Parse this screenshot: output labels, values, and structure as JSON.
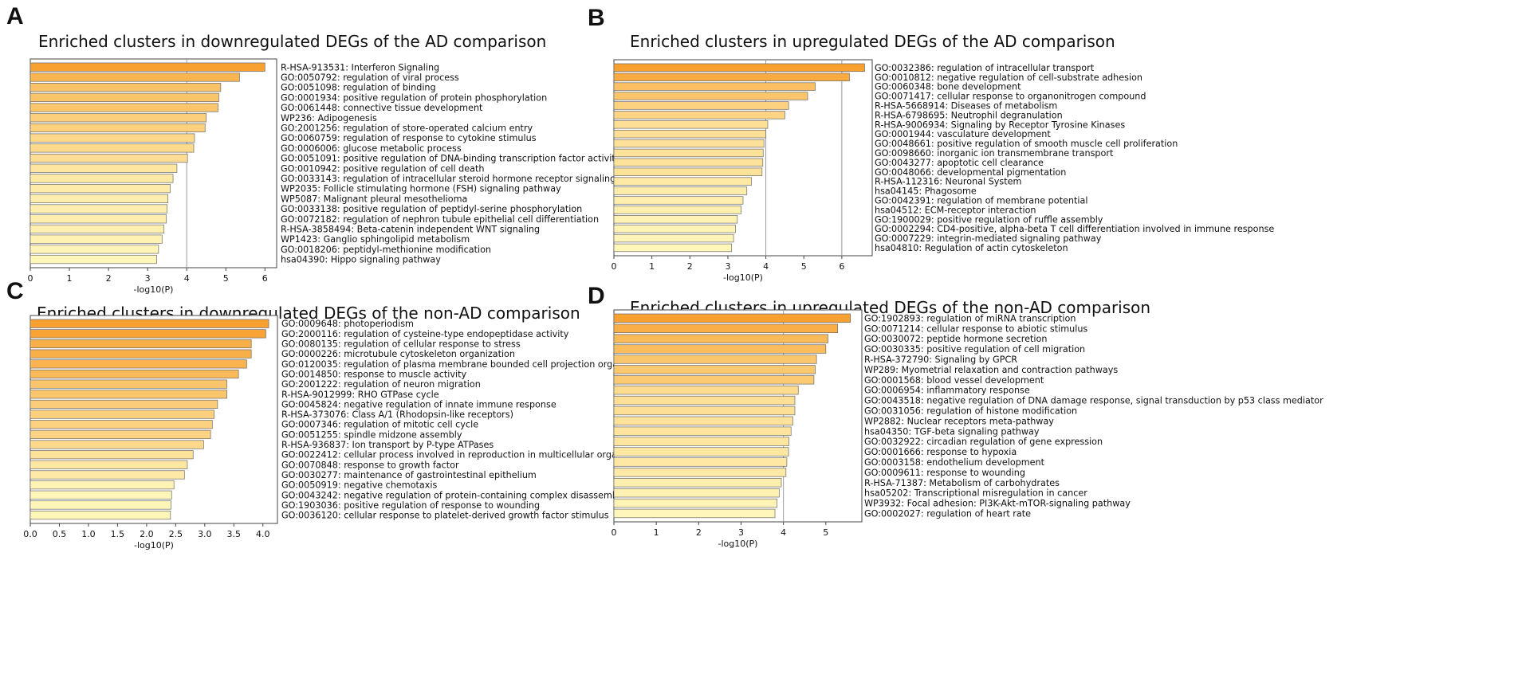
{
  "panels": [
    {
      "letter": "A",
      "title": "Enriched clusters  in downregulated DEGs of the AD comparison"
    },
    {
      "letter": "B",
      "title": "Enriched clusters  in upregulated DEGs of the AD comparison"
    },
    {
      "letter": "C",
      "title": "Enriched clusters in downregulated DEGs of the non-AD comparison"
    },
    {
      "letter": "D",
      "title": "Enriched clusters in upregulated DEGs of the non-AD comparison"
    }
  ],
  "chart_data": [
    {
      "type": "bar",
      "orientation": "horizontal",
      "title": "Enriched clusters  in downregulated DEGs of the AD comparison",
      "xlabel": "-log10(P)",
      "xlim": [
        0,
        6.3
      ],
      "xticks": [
        0,
        1,
        2,
        3,
        4,
        5,
        6
      ],
      "xtick_labels": [
        "0",
        "1",
        "2",
        "3",
        "4",
        "5",
        "6"
      ],
      "gridlines": [
        4
      ],
      "categories": [
        "R-HSA-913531: Interferon Signaling",
        "GO:0050792: regulation of viral process",
        "GO:0051098: regulation of binding",
        "GO:0001934: positive regulation of protein phosphorylation",
        "GO:0061448: connective tissue development",
        "WP236: Adipogenesis",
        "GO:2001256: regulation of store-operated calcium entry",
        "GO:0060759: regulation of response to cytokine stimulus",
        "GO:0006006: glucose metabolic process",
        "GO:0051091: positive regulation of DNA-binding transcription factor activity",
        "GO:0010942: positive regulation of cell death",
        "GO:0033143: regulation of intracellular steroid hormone receptor signaling pathw",
        "WP2035: Follicle stimulating hormone (FSH) signaling pathway",
        "WP5087: Malignant pleural mesothelioma",
        "GO:0033138: positive regulation of peptidyl-serine phosphorylation",
        "GO:0072182: regulation of nephron tubule epithelial cell differentiation",
        "R-HSA-3858494: Beta-catenin independent WNT signaling",
        "WP1423: Ganglio sphingolipid metabolism",
        "GO:0018206: peptidyl-methionine modification",
        "hsa04390: Hippo signaling pathway"
      ],
      "values": [
        6.0,
        5.35,
        4.87,
        4.82,
        4.8,
        4.5,
        4.47,
        4.2,
        4.18,
        4.02,
        3.75,
        3.65,
        3.58,
        3.52,
        3.5,
        3.48,
        3.42,
        3.37,
        3.28,
        3.23
      ]
    },
    {
      "type": "bar",
      "orientation": "horizontal",
      "title": "Enriched clusters  in upregulated DEGs of the AD comparison",
      "xlabel": "-log10(P)",
      "xlim": [
        0,
        6.8
      ],
      "xticks": [
        0,
        1,
        2,
        3,
        4,
        5,
        6
      ],
      "xtick_labels": [
        "0",
        "1",
        "2",
        "3",
        "4",
        "5",
        "6"
      ],
      "gridlines": [
        4,
        6
      ],
      "categories": [
        "GO:0032386: regulation of intracellular transport",
        "GO:0010812: negative regulation of cell-substrate adhesion",
        "GO:0060348: bone development",
        "GO:0071417: cellular response to organonitrogen compound",
        "R-HSA-5668914: Diseases of metabolism",
        "R-HSA-6798695: Neutrophil degranulation",
        "R-HSA-9006934: Signaling by Receptor Tyrosine Kinases",
        "GO:0001944: vasculature development",
        "GO:0048661: positive regulation of smooth muscle cell proliferation",
        "GO:0098660: inorganic ion transmembrane transport",
        "GO:0043277: apoptotic cell clearance",
        "GO:0048066: developmental pigmentation",
        "R-HSA-112316: Neuronal System",
        "hsa04145: Phagosome",
        "GO:0042391: regulation of membrane potential",
        "hsa04512: ECM-receptor interaction",
        "GO:1900029: positive regulation of ruffle assembly",
        "GO:0002294: CD4-positive, alpha-beta T cell differentiation involved in immune response",
        "GO:0007229: integrin-mediated signaling pathway",
        "hsa04810: Regulation of actin cytoskeleton"
      ],
      "values": [
        6.6,
        6.2,
        5.3,
        5.1,
        4.6,
        4.5,
        4.05,
        4.0,
        3.95,
        3.93,
        3.92,
        3.9,
        3.62,
        3.5,
        3.4,
        3.35,
        3.25,
        3.2,
        3.15,
        3.1
      ]
    },
    {
      "type": "bar",
      "orientation": "horizontal",
      "title": "Enriched clusters in downregulated DEGs of the non-AD comparison",
      "xlabel": "-log10(P)",
      "xlim": [
        0,
        4.25
      ],
      "xticks": [
        0,
        0.5,
        1,
        1.5,
        2,
        2.5,
        3,
        3.5,
        4
      ],
      "xtick_labels": [
        "0.0",
        "0.5",
        "1.0",
        "1.5",
        "2.0",
        "2.5",
        "3.0",
        "3.5",
        "4.0"
      ],
      "gridlines": [],
      "categories": [
        "GO:0009648: photoperiodism",
        "GO:2000116: regulation of cysteine-type endopeptidase activity",
        "GO:0080135: regulation of cellular response to stress",
        "GO:0000226: microtubule cytoskeleton organization",
        "GO:0120035: regulation of plasma membrane bounded cell projection organization",
        "GO:0014850: response to muscle activity",
        "GO:2001222: regulation of neuron migration",
        "R-HSA-9012999: RHO GTPase cycle",
        "GO:0045824: negative regulation of innate immune response",
        "R-HSA-373076: Class A/1 (Rhodopsin-like receptors)",
        "GO:0007346: regulation of mitotic cell cycle",
        "GO:0051255: spindle midzone assembly",
        "R-HSA-936837: Ion transport by P-type ATPases",
        "GO:0022412: cellular process involved in reproduction in multicellular organism",
        "GO:0070848: response to growth factor",
        "GO:0030277: maintenance of gastrointestinal epithelium",
        "GO:0050919: negative chemotaxis",
        "GO:0043242: negative regulation of protein-containing complex disassembly",
        "GO:1903036: positive regulation of response to wounding",
        "GO:0036120: cellular response to platelet-derived growth factor stimulus"
      ],
      "values": [
        4.1,
        4.05,
        3.8,
        3.8,
        3.72,
        3.58,
        3.38,
        3.38,
        3.22,
        3.16,
        3.13,
        3.1,
        2.98,
        2.8,
        2.7,
        2.65,
        2.47,
        2.43,
        2.42,
        2.41
      ]
    },
    {
      "type": "bar",
      "orientation": "horizontal",
      "title": "Enriched clusters in upregulated DEGs of the non-AD comparison",
      "xlabel": "-log10(P)",
      "xlim": [
        0,
        5.85
      ],
      "xticks": [
        0,
        1,
        2,
        3,
        4,
        5
      ],
      "xtick_labels": [
        "0",
        "1",
        "2",
        "3",
        "4",
        "5"
      ],
      "gridlines": [
        4
      ],
      "categories": [
        "GO:1902893: regulation of miRNA transcription",
        "GO:0071214: cellular response to abiotic stimulus",
        "GO:0030072: peptide hormone secretion",
        "GO:0030335: positive regulation of cell migration",
        "R-HSA-372790: Signaling by GPCR",
        "WP289: Myometrial relaxation and contraction pathways",
        "GO:0001568: blood vessel development",
        "GO:0006954: inflammatory response",
        "GO:0043518: negative regulation of DNA damage response, signal transduction by p53 class mediator",
        "GO:0031056: regulation of histone modification",
        "WP2882: Nuclear receptors meta-pathway",
        "hsa04350: TGF-beta signaling pathway",
        "GO:0032922: circadian regulation of gene expression",
        "GO:0001666: response to hypoxia",
        "GO:0003158: endothelium development",
        "GO:0009611: response to wounding",
        "R-HSA-71387: Metabolism of carbohydrates",
        "hsa05202: Transcriptional misregulation in cancer",
        "WP3932: Focal adhesion: PI3K-Akt-mTOR-signaling pathway",
        "GO:0002027: regulation of heart rate"
      ],
      "values": [
        5.58,
        5.28,
        5.05,
        5.0,
        4.78,
        4.75,
        4.72,
        4.35,
        4.27,
        4.27,
        4.22,
        4.18,
        4.13,
        4.12,
        4.08,
        4.06,
        3.95,
        3.9,
        3.85,
        3.8
      ]
    }
  ]
}
